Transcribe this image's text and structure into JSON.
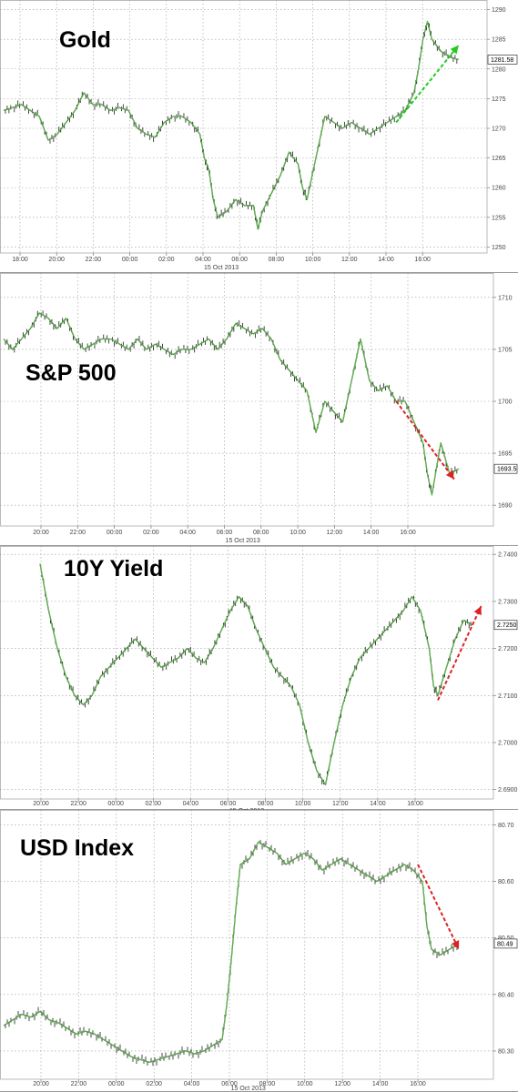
{
  "chart_data": [
    {
      "type": "line",
      "title": "Gold",
      "date_label": "15 Oct 2013",
      "x_ticks": [
        "18:00",
        "20:00",
        "22:00",
        "00:00",
        "02:00",
        "04:00",
        "06:00",
        "08:00",
        "10:00",
        "12:00",
        "14:00",
        "16:00"
      ],
      "y_ticks": [
        "1290",
        "1285",
        "1280",
        "1275",
        "1270",
        "1265",
        "1260",
        "1255",
        "1250"
      ],
      "ylim": [
        1249,
        1291
      ],
      "last_value_label": "1281.58",
      "grid": true,
      "series": [
        {
          "values": [
            [
              0,
              1273
            ],
            [
              1,
              1273.5
            ],
            [
              2,
              1274
            ],
            [
              3,
              1273
            ],
            [
              4,
              1272
            ],
            [
              5,
              1268
            ],
            [
              6,
              1269
            ],
            [
              7,
              1271
            ],
            [
              8,
              1273
            ],
            [
              9,
              1276
            ],
            [
              10,
              1274
            ],
            [
              11,
              1274
            ],
            [
              12,
              1273
            ],
            [
              13,
              1273.5
            ],
            [
              14,
              1273
            ],
            [
              15,
              1270
            ],
            [
              16,
              1269
            ],
            [
              17,
              1268.5
            ],
            [
              18,
              1271
            ],
            [
              19,
              1272
            ],
            [
              20,
              1272
            ],
            [
              21,
              1271
            ],
            [
              22,
              1269
            ],
            [
              22.5,
              1265
            ],
            [
              23,
              1263
            ],
            [
              23.5,
              1258
            ],
            [
              24,
              1255
            ],
            [
              25,
              1256
            ],
            [
              26,
              1258
            ],
            [
              27,
              1257
            ],
            [
              28,
              1257
            ],
            [
              28.5,
              1253
            ],
            [
              29,
              1256
            ],
            [
              30,
              1259
            ],
            [
              31,
              1262
            ],
            [
              32,
              1266
            ],
            [
              33,
              1264
            ],
            [
              33.5,
              1260
            ],
            [
              34,
              1258
            ],
            [
              35,
              1265
            ],
            [
              36,
              1272
            ],
            [
              37,
              1271
            ],
            [
              38,
              1270
            ],
            [
              39,
              1271
            ],
            [
              40,
              1270
            ],
            [
              41,
              1269
            ],
            [
              42,
              1270
            ],
            [
              43,
              1271
            ],
            [
              44,
              1272
            ],
            [
              45,
              1273
            ],
            [
              46,
              1276
            ],
            [
              46.5,
              1280
            ],
            [
              47,
              1285
            ],
            [
              47.5,
              1288
            ],
            [
              48,
              1285
            ],
            [
              49,
              1283
            ],
            [
              50,
              1282
            ],
            [
              51,
              1281.58
            ]
          ],
          "color": "#2e7d1f"
        }
      ],
      "annotation_arrow": {
        "from": [
          44,
          1271
        ],
        "to": [
          51,
          1284
        ],
        "color": "#22cc22"
      }
    },
    {
      "type": "line",
      "title": "S&P 500",
      "date_label": "15 Oct 2013",
      "x_ticks": [
        "20:00",
        "22:00",
        "00:00",
        "02:00",
        "04:00",
        "06:00",
        "08:00",
        "10:00",
        "12:00",
        "14:00",
        "16:00"
      ],
      "y_ticks": [
        "1710",
        "1705",
        "1700",
        "1695",
        "1690"
      ],
      "ylim": [
        1688,
        1712
      ],
      "last_value_label": "1693.5",
      "grid": true,
      "series": [
        {
          "values": [
            [
              0,
              1706
            ],
            [
              1,
              1705
            ],
            [
              2,
              1706
            ],
            [
              3,
              1707
            ],
            [
              4,
              1708.5
            ],
            [
              5,
              1708
            ],
            [
              6,
              1707
            ],
            [
              7,
              1708
            ],
            [
              8,
              1706
            ],
            [
              9,
              1705
            ],
            [
              10,
              1705.5
            ],
            [
              11,
              1706
            ],
            [
              12,
              1706
            ],
            [
              13,
              1705.5
            ],
            [
              14,
              1705
            ],
            [
              15,
              1706
            ],
            [
              16,
              1705
            ],
            [
              17,
              1705.5
            ],
            [
              18,
              1705
            ],
            [
              19,
              1704.5
            ],
            [
              20,
              1705
            ],
            [
              21,
              1705
            ],
            [
              22,
              1705.5
            ],
            [
              23,
              1706
            ],
            [
              24,
              1705
            ],
            [
              25,
              1706
            ],
            [
              26,
              1707.5
            ],
            [
              27,
              1707
            ],
            [
              28,
              1706.5
            ],
            [
              29,
              1707
            ],
            [
              30,
              1706
            ],
            [
              31,
              1704
            ],
            [
              32,
              1703
            ],
            [
              33,
              1702
            ],
            [
              34,
              1701
            ],
            [
              35,
              1697
            ],
            [
              36,
              1700
            ],
            [
              37,
              1699
            ],
            [
              38,
              1698
            ],
            [
              39,
              1702
            ],
            [
              40,
              1706
            ],
            [
              41,
              1702
            ],
            [
              42,
              1701
            ],
            [
              43,
              1701.5
            ],
            [
              44,
              1700
            ],
            [
              45,
              1700
            ],
            [
              46,
              1698
            ],
            [
              47,
              1696
            ],
            [
              47.5,
              1693
            ],
            [
              48,
              1691
            ],
            [
              49,
              1696
            ],
            [
              50,
              1693
            ],
            [
              51,
              1693.5
            ]
          ],
          "color": "#2e7d1f"
        }
      ],
      "annotation_arrow": {
        "from": [
          44,
          1700
        ],
        "to": [
          50.5,
          1692.5
        ],
        "color": "#dd2222"
      }
    },
    {
      "type": "line",
      "title": "10Y Yield",
      "date_label": "15 Oct 2013",
      "x_ticks": [
        "20:00",
        "22:00",
        "00:00",
        "02:00",
        "04:00",
        "06:00",
        "08:00",
        "10:00",
        "12:00",
        "14:00",
        "16:00"
      ],
      "y_ticks": [
        "2.7400",
        "2.7300",
        "2.7200",
        "2.7100",
        "2.7000",
        "2.6900"
      ],
      "ylim": [
        2.688,
        2.741
      ],
      "last_value_label": "2.7250",
      "grid": true,
      "series": [
        {
          "values": [
            [
              0,
              2.738
            ],
            [
              1,
              2.728
            ],
            [
              2,
              2.72
            ],
            [
              3,
              2.714
            ],
            [
              4,
              2.71
            ],
            [
              5,
              2.708
            ],
            [
              6,
              2.71
            ],
            [
              7,
              2.714
            ],
            [
              8,
              2.716
            ],
            [
              9,
              2.718
            ],
            [
              10,
              2.72
            ],
            [
              11,
              2.722
            ],
            [
              12,
              2.72
            ],
            [
              13,
              2.718
            ],
            [
              14,
              2.716
            ],
            [
              15,
              2.717
            ],
            [
              16,
              2.718
            ],
            [
              17,
              2.72
            ],
            [
              18,
              2.718
            ],
            [
              19,
              2.717
            ],
            [
              20,
              2.72
            ],
            [
              21,
              2.724
            ],
            [
              22,
              2.728
            ],
            [
              23,
              2.731
            ],
            [
              24,
              2.729
            ],
            [
              25,
              2.724
            ],
            [
              26,
              2.72
            ],
            [
              27,
              2.716
            ],
            [
              28,
              2.714
            ],
            [
              29,
              2.712
            ],
            [
              30,
              2.708
            ],
            [
              31,
              2.7
            ],
            [
              32,
              2.694
            ],
            [
              33,
              2.691
            ],
            [
              34,
              2.7
            ],
            [
              35,
              2.708
            ],
            [
              36,
              2.714
            ],
            [
              37,
              2.718
            ],
            [
              38,
              2.72
            ],
            [
              39,
              2.722
            ],
            [
              40,
              2.724
            ],
            [
              41,
              2.726
            ],
            [
              42,
              2.728
            ],
            [
              43,
              2.731
            ],
            [
              44,
              2.728
            ],
            [
              45,
              2.72
            ],
            [
              45.5,
              2.712
            ],
            [
              46,
              2.71
            ],
            [
              47,
              2.716
            ],
            [
              48,
              2.722
            ],
            [
              49,
              2.726
            ],
            [
              50,
              2.725
            ]
          ],
          "color": "#2e7d1f"
        }
      ],
      "annotation_arrow": {
        "from": [
          46,
          2.709
        ],
        "to": [
          51,
          2.729
        ],
        "color": "#dd2222"
      }
    },
    {
      "type": "line",
      "title": "USD Index",
      "date_label": "15 Oct 2013",
      "x_ticks": [
        "20:00",
        "22:00",
        "00:00",
        "02:00",
        "04:00",
        "06:00",
        "08:00",
        "10:00",
        "12:00",
        "14:00",
        "16:00"
      ],
      "y_ticks": [
        "80.70",
        "80.60",
        "80.50",
        "80.40",
        "80.30"
      ],
      "ylim": [
        80.25,
        80.72
      ],
      "last_value_label": "80.49",
      "grid": true,
      "series": [
        {
          "values": [
            [
              0,
              80.345
            ],
            [
              1,
              80.355
            ],
            [
              2,
              80.365
            ],
            [
              3,
              80.36
            ],
            [
              4,
              80.37
            ],
            [
              5,
              80.355
            ],
            [
              6,
              80.35
            ],
            [
              7,
              80.34
            ],
            [
              8,
              80.33
            ],
            [
              9,
              80.335
            ],
            [
              10,
              80.33
            ],
            [
              11,
              80.32
            ],
            [
              12,
              80.31
            ],
            [
              13,
              80.3
            ],
            [
              14,
              80.29
            ],
            [
              15,
              80.285
            ],
            [
              16,
              80.28
            ],
            [
              17,
              80.285
            ],
            [
              18,
              80.29
            ],
            [
              19,
              80.295
            ],
            [
              20,
              80.3
            ],
            [
              21,
              80.295
            ],
            [
              22,
              80.3
            ],
            [
              23,
              80.31
            ],
            [
              24,
              80.32
            ],
            [
              24.5,
              80.38
            ],
            [
              25,
              80.46
            ],
            [
              25.5,
              80.55
            ],
            [
              26,
              80.63
            ],
            [
              27,
              80.64
            ],
            [
              28,
              80.67
            ],
            [
              29,
              80.66
            ],
            [
              30,
              80.65
            ],
            [
              31,
              80.63
            ],
            [
              32,
              80.64
            ],
            [
              33,
              80.65
            ],
            [
              34,
              80.64
            ],
            [
              35,
              80.62
            ],
            [
              36,
              80.63
            ],
            [
              37,
              80.64
            ],
            [
              38,
              80.63
            ],
            [
              39,
              80.62
            ],
            [
              40,
              80.61
            ],
            [
              41,
              80.6
            ],
            [
              42,
              80.61
            ],
            [
              43,
              80.62
            ],
            [
              44,
              80.63
            ],
            [
              45,
              80.62
            ],
            [
              46,
              80.6
            ],
            [
              46.5,
              80.52
            ],
            [
              47,
              80.48
            ],
            [
              48,
              80.47
            ],
            [
              49,
              80.48
            ],
            [
              50,
              80.49
            ]
          ],
          "color": "#2e7d1f"
        }
      ],
      "annotation_arrow": {
        "from": [
          45.5,
          80.63
        ],
        "to": [
          50,
          80.48
        ],
        "color": "#dd2222"
      }
    }
  ]
}
